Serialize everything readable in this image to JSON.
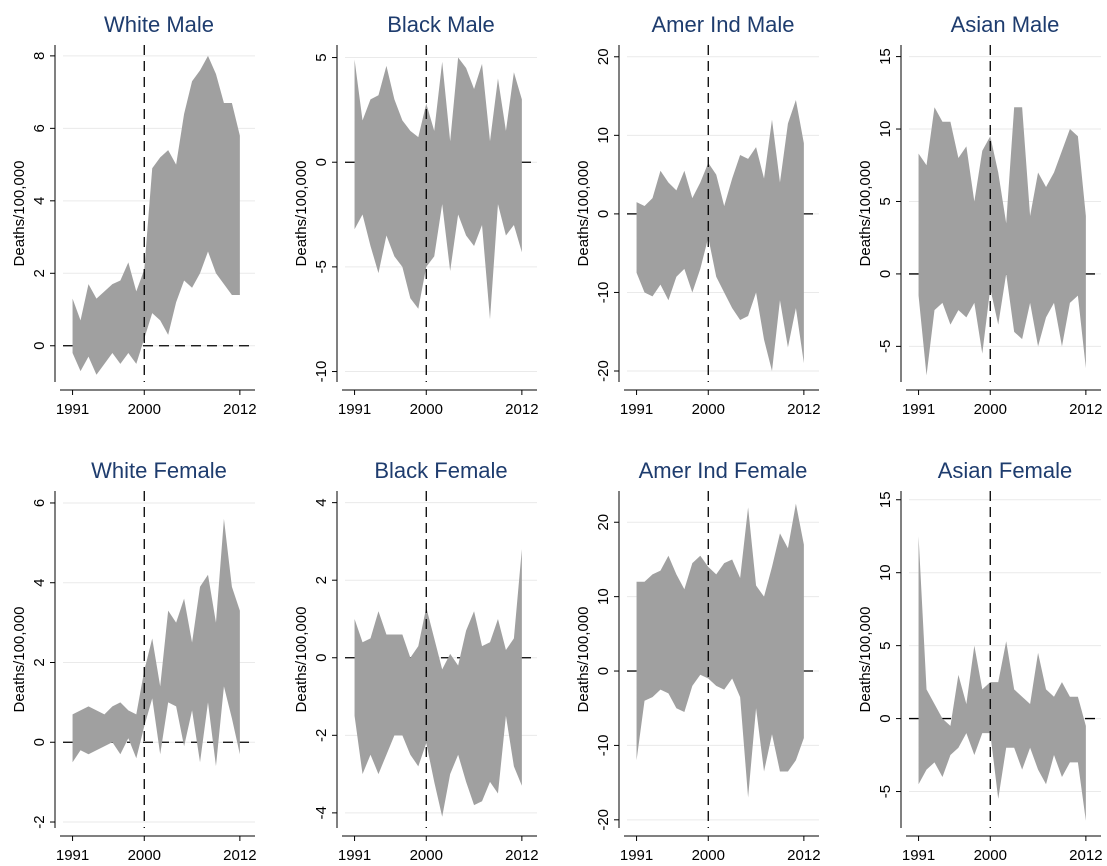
{
  "chart_data": [
    {
      "type": "band",
      "title": "White Male",
      "ylabel": "Deaths/100,000",
      "color": "#a0a0a0",
      "grid": true,
      "x": [
        1991,
        1992,
        1993,
        1994,
        1995,
        1996,
        1997,
        1998,
        1999,
        2000,
        2001,
        2002,
        2003,
        2004,
        2005,
        2006,
        2007,
        2008,
        2009,
        2010,
        2011,
        2012
      ],
      "upper": [
        1.3,
        0.7,
        1.7,
        1.3,
        1.5,
        1.7,
        1.8,
        2.3,
        1.5,
        2.1,
        4.9,
        5.2,
        5.4,
        5.0,
        6.4,
        7.3,
        7.6,
        8.0,
        7.5,
        6.7,
        6.7,
        5.8
      ],
      "lower": [
        -0.2,
        -0.7,
        -0.3,
        -0.8,
        -0.5,
        -0.2,
        -0.5,
        -0.2,
        -0.5,
        0.2,
        0.9,
        0.7,
        0.3,
        1.2,
        1.8,
        1.6,
        2.0,
        2.6,
        2.0,
        1.7,
        1.4,
        1.4
      ],
      "xlim": [
        1989.8,
        2013.9
      ],
      "xticks": [
        1991,
        2000,
        2012
      ],
      "ylim": [
        -1,
        8.3
      ],
      "yticks": [
        0,
        2,
        4,
        6,
        8
      ],
      "ref_lines": {
        "x": 2000,
        "y": 0
      }
    },
    {
      "type": "band",
      "title": "Black Male",
      "ylabel": "Deaths/100,000",
      "color": "#a0a0a0",
      "grid": true,
      "x": [
        1991,
        1992,
        1993,
        1994,
        1995,
        1996,
        1997,
        1998,
        1999,
        2000,
        2001,
        2002,
        2003,
        2004,
        2005,
        2006,
        2007,
        2008,
        2009,
        2010,
        2011,
        2012
      ],
      "upper": [
        4.9,
        2.0,
        3.0,
        3.2,
        4.6,
        3.0,
        2.0,
        1.5,
        1.2,
        2.8,
        1.5,
        4.8,
        1.0,
        5.0,
        4.5,
        3.5,
        4.7,
        1.0,
        4.0,
        1.5,
        4.3,
        3.0
      ],
      "lower": [
        -3.2,
        -2.5,
        -4.0,
        -5.3,
        -3.5,
        -4.5,
        -5.0,
        -6.5,
        -7.0,
        -5.0,
        -4.5,
        -2.0,
        -5.2,
        -2.5,
        -3.5,
        -4.0,
        -3.0,
        -7.5,
        -2.0,
        -3.5,
        -3.0,
        -4.3
      ],
      "xlim": [
        1989.8,
        2013.9
      ],
      "xticks": [
        1991,
        2000,
        2012
      ],
      "ylim": [
        -10.5,
        5.6
      ],
      "yticks": [
        -10,
        -5,
        0,
        5
      ],
      "ref_lines": {
        "x": 2000,
        "y": 0
      }
    },
    {
      "type": "band",
      "title": "Amer Ind Male",
      "ylabel": "Deaths/100,000",
      "color": "#a0a0a0",
      "grid": true,
      "x": [
        1991,
        1992,
        1993,
        1994,
        1995,
        1996,
        1997,
        1998,
        1999,
        2000,
        2001,
        2002,
        2003,
        2004,
        2005,
        2006,
        2007,
        2008,
        2009,
        2010,
        2011,
        2012
      ],
      "upper": [
        1.5,
        1.0,
        2.0,
        5.5,
        4.0,
        3.0,
        5.5,
        2.0,
        4.0,
        6.5,
        5.0,
        1.0,
        4.5,
        7.5,
        7.0,
        8.5,
        4.5,
        12.0,
        4.0,
        11.5,
        14.5,
        9.0
      ],
      "lower": [
        -7.5,
        -10,
        -10.5,
        -9,
        -11,
        -8,
        -7,
        -10,
        -7,
        -3,
        -8,
        -10,
        -12,
        -13.5,
        -13,
        -10,
        -16,
        -20,
        -11,
        -17,
        -12,
        -19
      ],
      "xlim": [
        1989.8,
        2013.9
      ],
      "xticks": [
        1991,
        2000,
        2012
      ],
      "ylim": [
        -21.4,
        21.5
      ],
      "yticks": [
        -20,
        -10,
        0,
        10,
        20
      ],
      "ref_lines": {
        "x": 2000,
        "y": 0
      }
    },
    {
      "type": "band",
      "title": "Asian Male",
      "ylabel": "Deaths/100,000",
      "color": "#a0a0a0",
      "grid": true,
      "x": [
        1991,
        1992,
        1993,
        1994,
        1995,
        1996,
        1997,
        1998,
        1999,
        2000,
        2001,
        2002,
        2003,
        2004,
        2005,
        2006,
        2007,
        2008,
        2009,
        2010,
        2011,
        2012
      ],
      "upper": [
        8.3,
        7.5,
        11.5,
        10.5,
        10.5,
        8,
        8.8,
        5,
        8.5,
        9.5,
        7,
        3.5,
        11.5,
        11.5,
        4,
        7,
        6,
        7,
        8.5,
        10,
        9.5,
        4
      ],
      "lower": [
        -1.5,
        -7,
        -2.5,
        -2,
        -3.5,
        -2.5,
        -3,
        -2,
        -5.5,
        -1,
        -3.5,
        0,
        -4,
        -4.5,
        -2,
        -5,
        -3,
        -2,
        -5,
        -2,
        -1.5,
        -6.5
      ],
      "xlim": [
        1989.8,
        2013.9
      ],
      "xticks": [
        1991,
        2000,
        2012
      ],
      "ylim": [
        -7.46,
        15.8
      ],
      "yticks": [
        -5,
        0,
        5,
        10,
        15
      ],
      "ref_lines": {
        "x": 2000,
        "y": 0
      }
    },
    {
      "type": "band",
      "title": "White Female",
      "ylabel": "Deaths/100,000",
      "color": "#a0a0a0",
      "grid": true,
      "x": [
        1991,
        1992,
        1993,
        1994,
        1995,
        1996,
        1997,
        1998,
        1999,
        2000,
        2001,
        2002,
        2003,
        2004,
        2005,
        2006,
        2007,
        2008,
        2009,
        2010,
        2011,
        2012
      ],
      "upper": [
        0.7,
        0.8,
        0.9,
        0.8,
        0.7,
        0.9,
        1.0,
        0.8,
        0.7,
        1.8,
        2.6,
        1.4,
        3.3,
        3.0,
        3.6,
        2.5,
        3.9,
        4.2,
        3.0,
        5.6,
        3.9,
        3.3
      ],
      "lower": [
        -0.5,
        -0.2,
        -0.3,
        -0.2,
        -0.1,
        0,
        -0.3,
        0.1,
        -0.4,
        0.4,
        1.1,
        -0.3,
        1.0,
        0.9,
        -0.1,
        0.8,
        -0.5,
        1.0,
        -0.6,
        1.4,
        0.6,
        -0.3
      ],
      "xlim": [
        1989.8,
        2013.9
      ],
      "xticks": [
        1991,
        2000,
        2012
      ],
      "ylim": [
        -2.15,
        6.3
      ],
      "yticks": [
        -2,
        0,
        2,
        4,
        6
      ],
      "ref_lines": {
        "x": 2000,
        "y": 0
      }
    },
    {
      "type": "band",
      "title": "Black Female",
      "ylabel": "Deaths/100,000",
      "color": "#a0a0a0",
      "grid": true,
      "x": [
        1991,
        1992,
        1993,
        1994,
        1995,
        1996,
        1997,
        1998,
        1999,
        2000,
        2001,
        2002,
        2003,
        2004,
        2005,
        2006,
        2007,
        2008,
        2009,
        2010,
        2011,
        2012
      ],
      "upper": [
        1.0,
        0.4,
        0.5,
        1.2,
        0.6,
        0.6,
        0.6,
        0,
        0.3,
        1.3,
        0.5,
        -0.3,
        0.1,
        -0.2,
        0.7,
        1.2,
        0.3,
        0.4,
        1.0,
        0.2,
        0.5,
        2.8
      ],
      "lower": [
        -1.5,
        -3.0,
        -2.5,
        -3.0,
        -2.5,
        -2.0,
        -2.0,
        -2.5,
        -2.8,
        -2.2,
        -3.2,
        -4.1,
        -3.0,
        -2.5,
        -3.2,
        -3.8,
        -3.7,
        -3.2,
        -3.5,
        -1.5,
        -2.8,
        -3.3
      ],
      "xlim": [
        1989.8,
        2013.9
      ],
      "xticks": [
        1991,
        2000,
        2012
      ],
      "ylim": [
        -4.39,
        4.3
      ],
      "yticks": [
        -4,
        -2,
        0,
        2,
        4
      ],
      "ref_lines": {
        "x": 2000,
        "y": 0
      }
    },
    {
      "type": "band",
      "title": "Amer Ind Female",
      "ylabel": "Deaths/100,000",
      "color": "#a0a0a0",
      "grid": true,
      "x": [
        1991,
        1992,
        1993,
        1994,
        1995,
        1996,
        1997,
        1998,
        1999,
        2000,
        2001,
        2002,
        2003,
        2004,
        2005,
        2006,
        2007,
        2008,
        2009,
        2010,
        2011,
        2012
      ],
      "upper": [
        12,
        12,
        13,
        13.5,
        15.5,
        13,
        11,
        14.5,
        15.5,
        14,
        13,
        14.5,
        15,
        12.5,
        22,
        11.5,
        10,
        14,
        18.5,
        16.5,
        22.5,
        17
      ],
      "lower": [
        -12,
        -4,
        -3.5,
        -2.5,
        -3,
        -5,
        -5.5,
        -2,
        -0.5,
        -1,
        -2,
        -2.5,
        -1,
        -3.5,
        -17,
        -5,
        -13.5,
        -8.5,
        -13.5,
        -13.5,
        -12,
        -9
      ],
      "xlim": [
        1989.8,
        2013.9
      ],
      "xticks": [
        1991,
        2000,
        2012
      ],
      "ylim": [
        -21.1,
        24.2
      ],
      "yticks": [
        -20,
        -10,
        0,
        10,
        20
      ],
      "ref_lines": {
        "x": 2000,
        "y": 0
      }
    },
    {
      "type": "band",
      "title": "Asian Female",
      "ylabel": "Deaths/100,000",
      "color": "#a0a0a0",
      "grid": true,
      "x": [
        1991,
        1992,
        1993,
        1994,
        1995,
        1996,
        1997,
        1998,
        1999,
        2000,
        2001,
        2002,
        2003,
        2004,
        2005,
        2006,
        2007,
        2008,
        2009,
        2010,
        2011,
        2012
      ],
      "upper": [
        12.5,
        2,
        1,
        0,
        -0.5,
        3,
        1,
        5,
        2,
        2.5,
        2.5,
        5.3,
        2,
        1.5,
        1,
        4.5,
        2,
        1.5,
        2.5,
        1.5,
        1.5,
        -0.5
      ],
      "lower": [
        -4.5,
        -3.5,
        -3,
        -4,
        -2.5,
        -2,
        -1,
        -2.5,
        -1,
        -1,
        -5.5,
        -2,
        -2,
        -3.5,
        -2,
        -3.5,
        -4.5,
        -2.5,
        -4,
        -3,
        -3,
        -7
      ],
      "xlim": [
        1989.8,
        2013.9
      ],
      "xticks": [
        1991,
        2000,
        2012
      ],
      "ylim": [
        -7.5,
        15.6
      ],
      "yticks": [
        -5,
        0,
        5,
        10,
        15
      ],
      "ref_lines": {
        "x": 2000,
        "y": 0
      }
    }
  ]
}
